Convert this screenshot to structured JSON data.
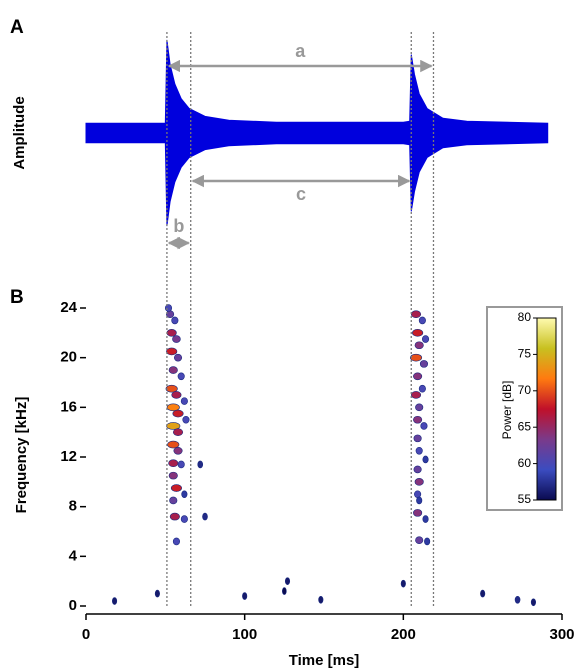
{
  "chart_data": [
    {
      "type": "waveform",
      "panel": "A",
      "ylabel": "Amplitude",
      "color": "#0000dd",
      "x": [
        0,
        50,
        51,
        53,
        56,
        60,
        65,
        75,
        90,
        120,
        200,
        204,
        205,
        207,
        210,
        215,
        225,
        240,
        291
      ],
      "values": [
        0.1,
        0.1,
        0.95,
        0.7,
        0.5,
        0.35,
        0.25,
        0.17,
        0.13,
        0.11,
        0.11,
        0.12,
        0.8,
        0.6,
        0.4,
        0.25,
        0.15,
        0.12,
        0.1
      ],
      "ylim": [
        -1,
        1
      ],
      "vlines": [
        51,
        66,
        205,
        219
      ],
      "annotations": [
        {
          "label": "a",
          "from": 51,
          "to": 219
        },
        {
          "label": "c",
          "from": 66,
          "to": 205
        },
        {
          "label": "b",
          "from": 51,
          "to": 66
        }
      ]
    },
    {
      "type": "spectrogram",
      "panel": "B",
      "xlabel": "Time [ms]",
      "ylabel": "Frequency [kHz]",
      "xlim": [
        0,
        300
      ],
      "xticks": [
        0,
        100,
        200,
        300
      ],
      "ylim": [
        0,
        24
      ],
      "yticks": [
        0,
        4,
        8,
        12,
        16,
        20,
        24
      ],
      "colorbar_label": "Power [dB]",
      "clim": [
        55,
        80
      ],
      "cticks": [
        55,
        60,
        65,
        70,
        75,
        80
      ],
      "colormap": [
        "#0a0a50",
        "#3b4cc0",
        "#7a3a8a",
        "#c0102a",
        "#ff7a10",
        "#c8c020",
        "#fffbb0"
      ],
      "points": [
        [
          53,
          23.5,
          62
        ],
        [
          56,
          23,
          60
        ],
        [
          54,
          22,
          66
        ],
        [
          57,
          21.5,
          63
        ],
        [
          54,
          20.5,
          68
        ],
        [
          58,
          20,
          62
        ],
        [
          55,
          19,
          64
        ],
        [
          60,
          18.5,
          60
        ],
        [
          54,
          17.5,
          70
        ],
        [
          57,
          17,
          66
        ],
        [
          62,
          16.5,
          60
        ],
        [
          55,
          16,
          72
        ],
        [
          58,
          15.5,
          68
        ],
        [
          63,
          15,
          60
        ],
        [
          55,
          14.5,
          74
        ],
        [
          58,
          14,
          66
        ],
        [
          55,
          13,
          70
        ],
        [
          58,
          12.5,
          64
        ],
        [
          55,
          11.5,
          66
        ],
        [
          60,
          11.4,
          60
        ],
        [
          72,
          11.4,
          57
        ],
        [
          55,
          10.5,
          64
        ],
        [
          57,
          9.5,
          68
        ],
        [
          62,
          9,
          58
        ],
        [
          55,
          8.5,
          62
        ],
        [
          56,
          7.2,
          66
        ],
        [
          62,
          7,
          60
        ],
        [
          75,
          7.2,
          57
        ],
        [
          57,
          5.2,
          60
        ],
        [
          52,
          24,
          60
        ],
        [
          208,
          23.5,
          66
        ],
        [
          212,
          23,
          60
        ],
        [
          209,
          22,
          68
        ],
        [
          214,
          21.5,
          60
        ],
        [
          210,
          21,
          64
        ],
        [
          208,
          20,
          70
        ],
        [
          213,
          19.5,
          62
        ],
        [
          209,
          18.5,
          64
        ],
        [
          212,
          17.5,
          60
        ],
        [
          208,
          17,
          66
        ],
        [
          210,
          16,
          62
        ],
        [
          209,
          15,
          64
        ],
        [
          213,
          14.5,
          60
        ],
        [
          209,
          13.5,
          62
        ],
        [
          210,
          12.5,
          60
        ],
        [
          214,
          11.8,
          58
        ],
        [
          209,
          11,
          62
        ],
        [
          210,
          10,
          64
        ],
        [
          209,
          9,
          60
        ],
        [
          210,
          8.5,
          58
        ],
        [
          209,
          7.5,
          64
        ],
        [
          214,
          7,
          58
        ],
        [
          210,
          5.3,
          62
        ],
        [
          215,
          5.2,
          58
        ],
        [
          18,
          0.4,
          56
        ],
        [
          45,
          1,
          56
        ],
        [
          100,
          0.8,
          56
        ],
        [
          125,
          1.2,
          55
        ],
        [
          148,
          0.5,
          56
        ],
        [
          200,
          1.8,
          56
        ],
        [
          250,
          1,
          56
        ],
        [
          272,
          0.5,
          57
        ],
        [
          282,
          0.3,
          56
        ],
        [
          127,
          2,
          56
        ]
      ]
    }
  ]
}
